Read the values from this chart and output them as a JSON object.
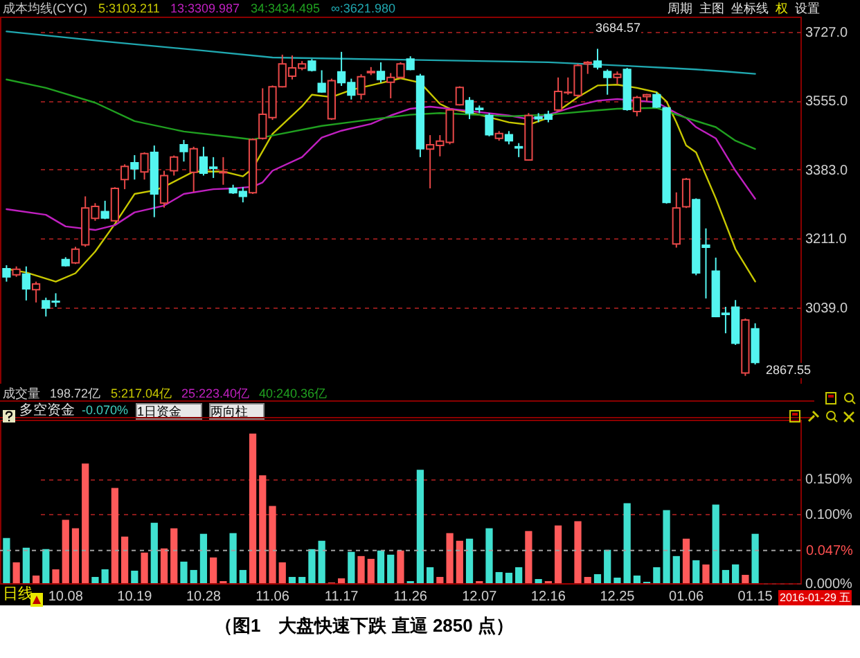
{
  "chart_data": [
    {
      "type": "candlestick",
      "title": "成本均线(CYC)",
      "legend": "top left",
      "tick_labels": "y",
      "grid": "y",
      "categories": [
        null,
        null,
        null,
        null,
        null,
        null,
        "10.08",
        null,
        null,
        null,
        null,
        null,
        null,
        "10.19",
        null,
        null,
        null,
        null,
        null,
        null,
        "10.28",
        null,
        null,
        null,
        null,
        null,
        null,
        "11.06",
        null,
        null,
        null,
        null,
        null,
        null,
        "11.17",
        null,
        null,
        null,
        null,
        null,
        null,
        "11.26",
        null,
        null,
        null,
        null,
        null,
        null,
        "12.07",
        null,
        null,
        null,
        null,
        null,
        null,
        "12.16",
        null,
        null,
        null,
        null,
        null,
        null,
        "12.25",
        null,
        null,
        null,
        null,
        null,
        null,
        "01.06",
        null,
        null,
        null,
        null,
        null,
        null,
        "01.15"
      ],
      "ylim": [
        2848,
        3765
      ],
      "yticks": [
        {
          "value": 3039,
          "label": "3039.0"
        },
        {
          "value": 3211,
          "label": "3211.0"
        },
        {
          "value": 3383,
          "label": "3383.0"
        },
        {
          "value": 3555,
          "label": "3555.0"
        },
        {
          "value": 3727,
          "label": "3727.0"
        }
      ],
      "ohlc": [
        [
          3135,
          3144,
          3103,
          3115
        ],
        [
          3120,
          3141,
          3115,
          3134
        ],
        [
          3122,
          3141,
          3056,
          3085
        ],
        [
          3083,
          3103,
          3051,
          3097
        ],
        [
          3055,
          3063,
          3016,
          3037
        ],
        [
          3054,
          3074,
          3040,
          3052
        ],
        [
          3158,
          3164,
          3141,
          3143
        ],
        [
          3150,
          3190,
          3147,
          3184
        ],
        [
          3195,
          3316,
          3190,
          3287
        ],
        [
          3261,
          3299,
          3255,
          3291
        ],
        [
          3278,
          3305,
          3259,
          3262
        ],
        [
          3255,
          3339,
          3253,
          3336
        ],
        [
          3358,
          3396,
          3334,
          3391
        ],
        [
          3400,
          3419,
          3358,
          3385
        ],
        [
          3377,
          3426,
          3358,
          3423
        ],
        [
          3426,
          3443,
          3264,
          3322
        ],
        [
          3299,
          3380,
          3288,
          3368
        ],
        [
          3380,
          3418,
          3368,
          3414
        ],
        [
          3445,
          3457,
          3403,
          3428
        ],
        [
          3376,
          3440,
          3327,
          3435
        ],
        [
          3414,
          3440,
          3368,
          3374
        ],
        [
          3389,
          3414,
          3362,
          3386
        ],
        [
          3375,
          3414,
          3345,
          3377
        ],
        [
          3336,
          3345,
          3322,
          3325
        ],
        [
          3328,
          3339,
          3301,
          3316
        ],
        [
          3325,
          3461,
          3322,
          3458
        ],
        [
          3461,
          3586,
          3458,
          3521
        ],
        [
          3513,
          3593,
          3507,
          3590
        ],
        [
          3590,
          3670,
          3588,
          3647
        ],
        [
          3616,
          3668,
          3608,
          3637
        ],
        [
          3636,
          3654,
          3631,
          3647
        ],
        [
          3654,
          3659,
          3628,
          3631
        ],
        [
          3598,
          3631,
          3575,
          3577
        ],
        [
          3510,
          3610,
          3507,
          3605
        ],
        [
          3627,
          3677,
          3592,
          3600
        ],
        [
          3600,
          3610,
          3558,
          3569
        ],
        [
          3571,
          3621,
          3558,
          3615
        ],
        [
          3625,
          3639,
          3619,
          3628
        ],
        [
          3628,
          3651,
          3600,
          3608
        ],
        [
          3601,
          3624,
          3561,
          3613
        ],
        [
          3613,
          3651,
          3610,
          3647
        ],
        [
          3659,
          3666,
          3631,
          3633
        ],
        [
          3616,
          3622,
          3414,
          3435
        ],
        [
          3434,
          3469,
          3336,
          3445
        ],
        [
          3443,
          3469,
          3416,
          3454
        ],
        [
          3451,
          3535,
          3446,
          3532
        ],
        [
          3545,
          3591,
          3543,
          3588
        ],
        [
          3555,
          3564,
          3509,
          3524
        ],
        [
          3536,
          3543,
          3524,
          3533
        ],
        [
          3518,
          3524,
          3466,
          3470
        ],
        [
          3461,
          3479,
          3455,
          3473
        ],
        [
          3470,
          3479,
          3446,
          3455
        ],
        [
          3440,
          3449,
          3414,
          3437
        ],
        [
          3407,
          3524,
          3405,
          3518
        ],
        [
          3514,
          3524,
          3501,
          3510
        ],
        [
          3520,
          3530,
          3501,
          3509
        ],
        [
          3532,
          3613,
          3530,
          3578
        ],
        [
          3575,
          3613,
          3570,
          3576
        ],
        [
          3568,
          3647,
          3564,
          3643
        ],
        [
          3647,
          3654,
          3622,
          3651
        ],
        [
          3654,
          3684.57,
          3633,
          3639
        ],
        [
          3628,
          3633,
          3570,
          3613
        ],
        [
          3613,
          3628,
          3596,
          3621
        ],
        [
          3633,
          3637,
          3530,
          3533
        ],
        [
          3528,
          3567,
          3516,
          3563
        ],
        [
          3565,
          3572,
          3553,
          3570
        ],
        [
          3570,
          3576,
          3537,
          3539
        ],
        [
          3537,
          3539,
          3298,
          3301
        ],
        [
          3197,
          3326,
          3188,
          3287
        ],
        [
          3290,
          3362,
          3287,
          3359
        ],
        [
          3308,
          3311,
          3119,
          3125
        ],
        [
          3194,
          3236,
          3061,
          3189
        ],
        [
          3129,
          3163,
          3014,
          3016
        ],
        [
          3024,
          3040,
          2974,
          3021
        ],
        [
          3039,
          3057,
          2945,
          2949
        ],
        [
          2875,
          3011,
          2867.55,
          3007
        ],
        [
          2985,
          2999,
          2896,
          2901
        ]
      ],
      "colors": [
        "#54f5f0",
        "#e84848",
        "#54f5f0",
        "#e84848",
        "#54f5f0",
        "#54f5f0",
        "#54f5f0",
        "#e84848",
        "#e84848",
        "#e84848",
        "#54f5f0",
        "#e84848",
        "#e84848",
        "#54f5f0",
        "#e84848",
        "#54f5f0",
        "#e84848",
        "#e84848",
        "#54f5f0",
        "#e84848",
        "#54f5f0",
        "#54f5f0",
        "#e84848",
        "#54f5f0",
        "#54f5f0",
        "#e84848",
        "#e84848",
        "#e84848",
        "#e84848",
        "#e84848",
        "#e84848",
        "#54f5f0",
        "#54f5f0",
        "#e84848",
        "#54f5f0",
        "#54f5f0",
        "#e84848",
        "#e84848",
        "#54f5f0",
        "#e84848",
        "#e84848",
        "#54f5f0",
        "#54f5f0",
        "#e84848",
        "#e84848",
        "#e84848",
        "#e84848",
        "#54f5f0",
        "#54f5f0",
        "#54f5f0",
        "#e84848",
        "#54f5f0",
        "#54f5f0",
        "#e84848",
        "#54f5f0",
        "#54f5f0",
        "#e84848",
        "#e84848",
        "#e84848",
        "#e84848",
        "#54f5f0",
        "#54f5f0",
        "#e84848",
        "#54f5f0",
        "#e84848",
        "#e84848",
        "#54f5f0",
        "#54f5f0",
        "#e84848",
        "#e84848",
        "#54f5f0",
        "#54f5f0",
        "#54f5f0",
        "#54f5f0",
        "#54f5f0",
        "#e84848",
        "#54f5f0"
      ],
      "series": [
        {
          "name": "5:3103.211",
          "type": "line",
          "color": "#c8c800",
          "values": [
            3135,
            null,
            3126,
            null,
            null,
            3103,
            null,
            3124,
            null,
            3178,
            null,
            3247,
            null,
            3322,
            null,
            3331,
            3340,
            null,
            null,
            3378,
            null,
            null,
            3378,
            null,
            3366,
            3386,
            null,
            3472,
            null,
            null,
            3541,
            3570,
            null,
            3564,
            null,
            3582,
            null,
            null,
            3599,
            null,
            3611,
            null,
            3600,
            null,
            3547,
            3535,
            null,
            null,
            3520,
            null,
            null,
            3501,
            null,
            3495,
            null,
            3512,
            null,
            null,
            3564,
            null,
            3593,
            null,
            3595,
            null,
            3587,
            null,
            3576,
            3553,
            3501,
            3443,
            3426,
            null,
            3311,
            null,
            3184,
            null,
            3103.211
          ]
        },
        {
          "name": "13:3309.987",
          "type": "line",
          "color": "#c020c0",
          "values": [
            3284,
            null,
            null,
            null,
            3270,
            null,
            3241,
            null,
            null,
            3232,
            null,
            3244,
            null,
            3276,
            null,
            null,
            3293,
            null,
            3322,
            null,
            null,
            3334,
            null,
            3336,
            null,
            3340,
            3351,
            3380,
            null,
            null,
            3414,
            null,
            3463,
            null,
            3480,
            null,
            null,
            3497,
            null,
            3518,
            null,
            3535,
            null,
            3540,
            null,
            null,
            3532,
            null,
            null,
            null,
            null,
            3518,
            null,
            3509,
            null,
            3520,
            null,
            null,
            3543,
            null,
            3555,
            null,
            3559,
            null,
            null,
            null,
            3551,
            null,
            3524,
            3512,
            3489,
            null,
            3461,
            null,
            3380,
            null,
            3309.987
          ]
        },
        {
          "name": "34:3434.495",
          "type": "line",
          "color": "#20a020",
          "values": [
            3608,
            null,
            null,
            null,
            3587,
            null,
            null,
            null,
            null,
            3550,
            null,
            null,
            null,
            3504,
            null,
            null,
            null,
            null,
            3478,
            null,
            null,
            null,
            null,
            3464,
            null,
            3458,
            null,
            3468,
            null,
            null,
            null,
            null,
            3492,
            null,
            null,
            null,
            null,
            3508,
            null,
            null,
            null,
            3520,
            null,
            null,
            3524,
            null,
            null,
            null,
            null,
            null,
            null,
            3516,
            null,
            null,
            null,
            3520,
            null,
            null,
            null,
            null,
            3531,
            null,
            3535,
            null,
            null,
            null,
            3537,
            null,
            null,
            3512,
            null,
            null,
            3489,
            null,
            3455,
            null,
            3434.495
          ]
        },
        {
          "name": "∞:3621.980",
          "type": "line",
          "color": "#20a8b0",
          "values": [
            3728,
            null,
            null,
            null,
            null,
            null,
            null,
            null,
            null,
            null,
            3703,
            null,
            null,
            null,
            null,
            null,
            null,
            null,
            null,
            null,
            3680,
            null,
            null,
            null,
            null,
            null,
            null,
            3663,
            null,
            null,
            null,
            null,
            null,
            null,
            3660,
            null,
            null,
            null,
            null,
            null,
            null,
            3657,
            null,
            null,
            null,
            null,
            null,
            null,
            3654,
            null,
            null,
            null,
            null,
            null,
            null,
            3651,
            null,
            null,
            null,
            null,
            null,
            null,
            null,
            3642,
            null,
            null,
            null,
            3637,
            null,
            null,
            3633,
            null,
            null,
            3628,
            null,
            null,
            3621.98
          ]
        }
      ],
      "annotations": [
        "周期",
        "主图",
        "坐标线",
        "权",
        "设置",
        "3684.57",
        "2867.55"
      ]
    },
    {
      "type": "bar",
      "title": "多空资金",
      "grid": "y",
      "categories": [
        null,
        null,
        null,
        null,
        null,
        null,
        "10.08",
        null,
        null,
        null,
        null,
        null,
        null,
        "10.19",
        null,
        null,
        null,
        null,
        null,
        null,
        "10.28",
        null,
        null,
        null,
        null,
        null,
        null,
        "11.06",
        null,
        null,
        null,
        null,
        null,
        null,
        "11.17",
        null,
        null,
        null,
        null,
        null,
        null,
        "11.26",
        null,
        null,
        null,
        null,
        null,
        null,
        "12.07",
        null,
        null,
        null,
        null,
        null,
        null,
        "12.16",
        null,
        null,
        null,
        null,
        null,
        null,
        "12.25",
        null,
        null,
        null,
        null,
        null,
        null,
        "01.06",
        null,
        null,
        null,
        null,
        null,
        null,
        "01.15"
      ],
      "ylim": [
        0,
        0.235
      ],
      "yticks": [
        {
          "value": 0,
          "label": "0.000%"
        },
        {
          "value": 0.1,
          "label": "0.100%"
        },
        {
          "value": 0.15,
          "label": "0.150%"
        }
      ],
      "values": [
        0.065,
        0.03,
        0.051,
        0.011,
        0.049,
        0.02,
        0.091,
        0.079,
        0.172,
        0.009,
        0.02,
        0.137,
        0.067,
        0.018,
        0.044,
        0.087,
        0.05,
        0.079,
        0.031,
        0.019,
        0.071,
        0.037,
        0.003,
        0.072,
        0.019,
        0.215,
        0.155,
        0.111,
        0.03,
        0.009,
        0.009,
        0.049,
        0.061,
        0.001,
        0.007,
        0.045,
        0.039,
        0.035,
        0.047,
        0.041,
        0.047,
        0.003,
        0.163,
        0.023,
        0.009,
        0.072,
        0.061,
        0.064,
        0.003,
        0.079,
        0.016,
        0.015,
        0.023,
        0.075,
        0.006,
        0.003,
        0.083,
        null,
        0.089,
        0.009,
        0.013,
        0.048,
        0.008,
        0.115,
        0.011,
        0.002,
        0.023,
        0.105,
        0.039,
        0.064,
        0.033,
        0.027,
        0.113,
        0.019,
        0.027,
        0.012,
        0.071
      ],
      "colors": [
        "#40e0d0",
        "#ff5a5a",
        "#40e0d0",
        "#ff5a5a",
        "#40e0d0",
        "#ff5a5a",
        "#ff5a5a",
        "#ff5a5a",
        "#ff5a5a",
        "#40e0d0",
        "#40e0d0",
        "#ff5a5a",
        "#ff5a5a",
        "#40e0d0",
        "#ff5a5a",
        "#40e0d0",
        "#ff5a5a",
        "#ff5a5a",
        "#40e0d0",
        "#40e0d0",
        "#40e0d0",
        "#ff5a5a",
        "#ff5a5a",
        "#40e0d0",
        "#40e0d0",
        "#ff5a5a",
        "#ff5a5a",
        "#ff5a5a",
        "#ff5a5a",
        "#40e0d0",
        "#40e0d0",
        "#40e0d0",
        "#40e0d0",
        "#ff5a5a",
        "#ff5a5a",
        "#40e0d0",
        "#ff5a5a",
        "#ff5a5a",
        "#40e0d0",
        "#40e0d0",
        "#ff5a5a",
        "#40e0d0",
        "#40e0d0",
        "#40e0d0",
        "#ff5a5a",
        "#ff5a5a",
        "#ff5a5a",
        "#40e0d0",
        "#ff5a5a",
        "#40e0d0",
        "#40e0d0",
        "#40e0d0",
        "#40e0d0",
        "#ff5a5a",
        "#40e0d0",
        "#ff5a5a",
        "#ff5a5a",
        "#ff5a5a",
        "#ff5a5a",
        "#ff5a5a",
        "#40e0d0",
        "#40e0d0",
        "#40e0d0",
        "#40e0d0",
        "#40e0d0",
        "#40e0d0",
        "#40e0d0",
        "#40e0d0",
        "#40e0d0",
        "#ff5a5a",
        "#40e0d0",
        "#ff5a5a",
        "#40e0d0",
        "#40e0d0",
        "#40e0d0",
        "#ff5a5a",
        "#40e0d0"
      ],
      "ref_lines": [
        {
          "axis": "y",
          "value": 0.047,
          "label": "0.047%",
          "color": "#a0a0a0",
          "line_style": "dashed"
        }
      ],
      "annotations": [
        "成交量",
        "198.72亿",
        "5:217.04亿",
        "25:223.40亿",
        "40:240.36亿",
        "-0.070%",
        "1日资金",
        "两向柱",
        "日线",
        "2016-01-29 五",
        "（图1　大盘快速下跌 直逼 2850 点）"
      ]
    }
  ]
}
